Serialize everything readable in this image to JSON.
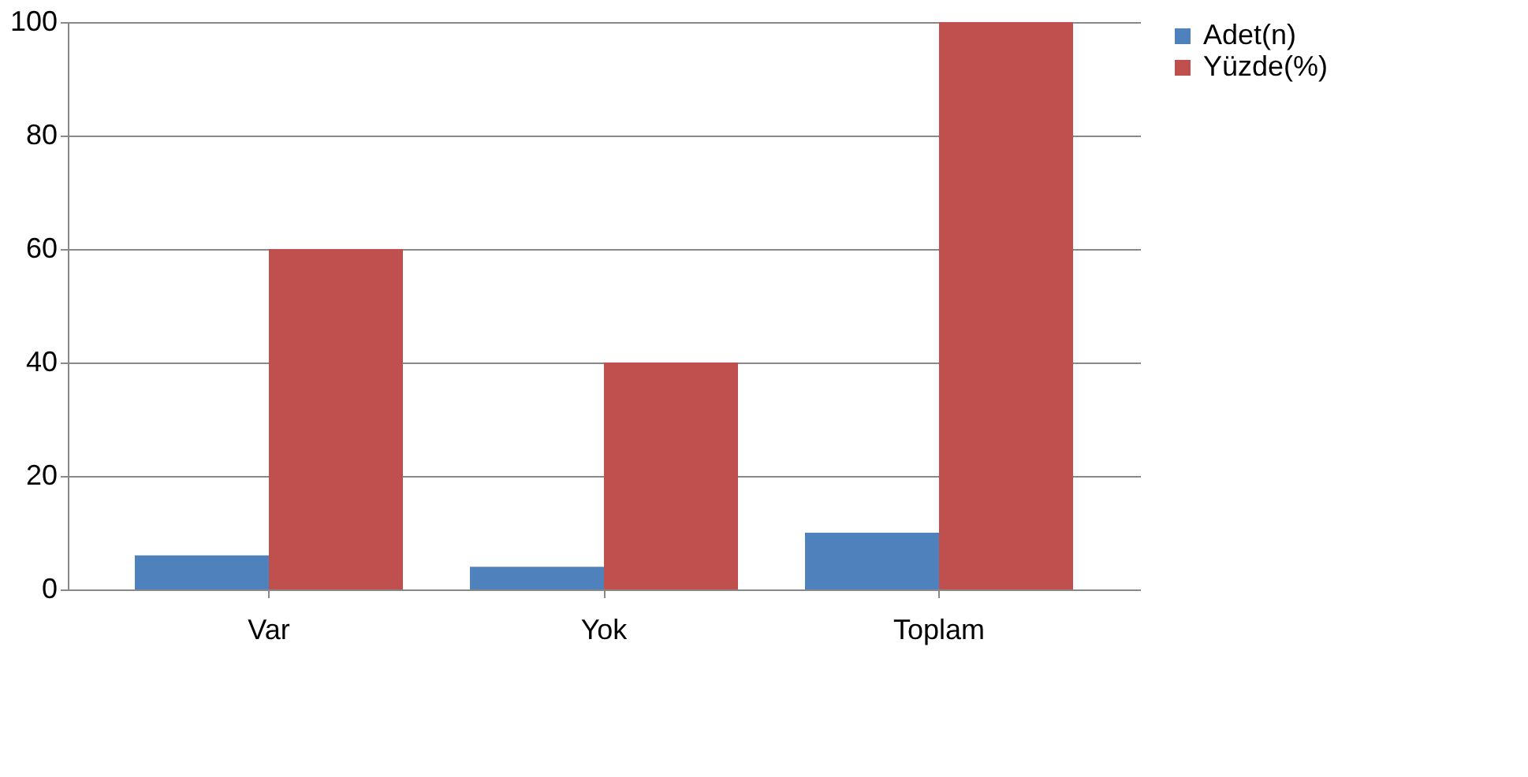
{
  "chart_data": {
    "type": "bar",
    "categories": [
      "Var",
      "Yok",
      "Toplam"
    ],
    "series": [
      {
        "name": "Adet(n)",
        "color": "#4f81bd",
        "values": [
          6,
          4,
          10
        ]
      },
      {
        "name": "Yüzde(%)",
        "color": "#c0504d",
        "values": [
          60,
          40,
          100
        ]
      }
    ],
    "ylim": [
      0,
      100
    ],
    "yticks": [
      0,
      20,
      40,
      60,
      80,
      100
    ],
    "grid": "y",
    "legend": "right"
  }
}
